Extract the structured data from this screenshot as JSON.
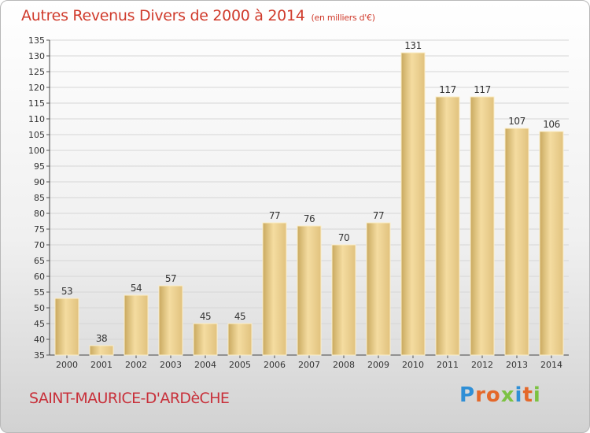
{
  "header": {
    "title": "Autres Revenus Divers de 2000 à 2014",
    "unit": "(en milliers d'€)"
  },
  "footer": {
    "town": "SAINT-MAURICE-D'ARDèCHE"
  },
  "brand": {
    "letters": [
      "P",
      "r",
      "o",
      "x",
      "i",
      "t",
      "i"
    ],
    "colors": [
      "#2f8fd6",
      "#e4682a",
      "#e4682a",
      "#7cc242",
      "#2f8fd6",
      "#e4682a",
      "#7cc242"
    ]
  },
  "chart_data": {
    "type": "bar",
    "categories": [
      "2000",
      "2001",
      "2002",
      "2003",
      "2004",
      "2005",
      "2006",
      "2007",
      "2008",
      "2009",
      "2010",
      "2011",
      "2012",
      "2013",
      "2014"
    ],
    "values": [
      53,
      38,
      54,
      57,
      45,
      45,
      77,
      76,
      70,
      77,
      131,
      117,
      117,
      107,
      106
    ],
    "ylim": [
      35,
      135
    ],
    "yticks": [
      35,
      40,
      45,
      50,
      55,
      60,
      65,
      70,
      75,
      80,
      85,
      90,
      95,
      100,
      105,
      110,
      115,
      120,
      125,
      130,
      135
    ],
    "grid": true,
    "legend": "none",
    "bar_color": "#e8c97c",
    "data_labels": true
  }
}
